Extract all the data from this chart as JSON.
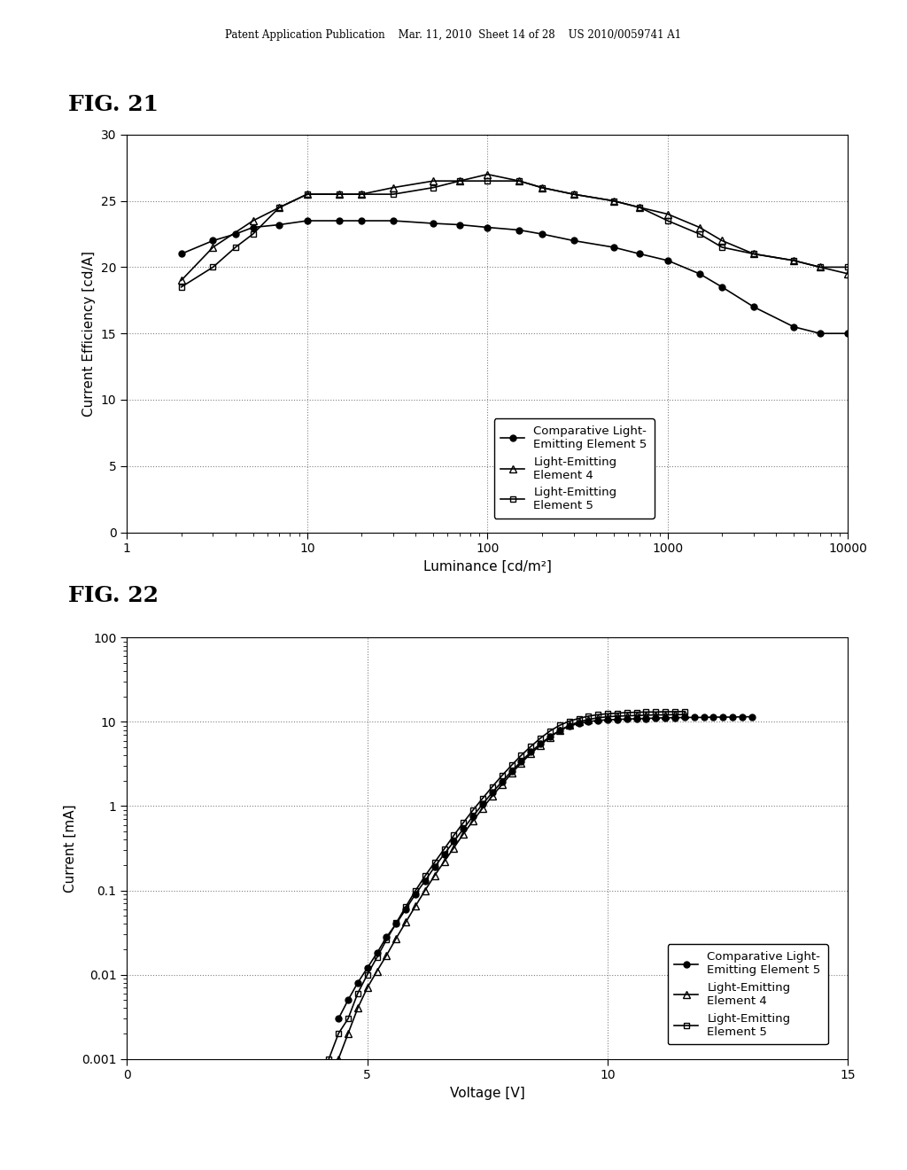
{
  "header_text": "Patent Application Publication    Mar. 11, 2010  Sheet 14 of 28    US 2010/0059741 A1",
  "fig1_label": "FIG. 21",
  "fig2_label": "FIG. 22",
  "fig1_xlabel": "Luminance [cd/m²]",
  "fig1_ylabel": "Current Efficiency [cd/A]",
  "fig2_xlabel": "Voltage [V]",
  "fig2_ylabel": "Current [mA]",
  "fig1_ylim": [
    0,
    30
  ],
  "fig1_yticks": [
    0,
    5,
    10,
    15,
    20,
    25,
    30
  ],
  "fig2_xlim": [
    0,
    15
  ],
  "fig2_xticks": [
    0,
    5,
    10,
    15
  ],
  "legend_labels": [
    "Comparative Light-\nEmitting Element 5",
    "Light-Emitting\nElement 4",
    "Light-Emitting\nElement 5"
  ],
  "fig1_comp5_x": [
    2,
    3,
    4,
    5,
    7,
    10,
    15,
    20,
    30,
    50,
    70,
    100,
    150,
    200,
    300,
    500,
    700,
    1000,
    1500,
    2000,
    3000,
    5000,
    7000,
    10000
  ],
  "fig1_comp5_y": [
    21.0,
    22.0,
    22.5,
    23.0,
    23.2,
    23.5,
    23.5,
    23.5,
    23.5,
    23.3,
    23.2,
    23.0,
    22.8,
    22.5,
    22.0,
    21.5,
    21.0,
    20.5,
    19.5,
    18.5,
    17.0,
    15.5,
    15.0,
    15.0
  ],
  "fig1_elem4_x": [
    2,
    3,
    5,
    7,
    10,
    15,
    20,
    30,
    50,
    70,
    100,
    150,
    200,
    300,
    500,
    700,
    1000,
    1500,
    2000,
    3000,
    5000,
    7000,
    10000
  ],
  "fig1_elem4_y": [
    19.0,
    21.5,
    23.5,
    24.5,
    25.5,
    25.5,
    25.5,
    26.0,
    26.5,
    26.5,
    27.0,
    26.5,
    26.0,
    25.5,
    25.0,
    24.5,
    24.0,
    23.0,
    22.0,
    21.0,
    20.5,
    20.0,
    19.5
  ],
  "fig1_elem5_x": [
    2,
    3,
    4,
    5,
    7,
    10,
    15,
    20,
    30,
    50,
    70,
    100,
    150,
    200,
    300,
    500,
    700,
    1000,
    1500,
    2000,
    3000,
    5000,
    7000,
    10000
  ],
  "fig1_elem5_y": [
    18.5,
    20.0,
    21.5,
    22.5,
    24.5,
    25.5,
    25.5,
    25.5,
    25.5,
    26.0,
    26.5,
    26.5,
    26.5,
    26.0,
    25.5,
    25.0,
    24.5,
    23.5,
    22.5,
    21.5,
    21.0,
    20.5,
    20.0,
    20.0
  ],
  "fig2_comp5_x": [
    4.4,
    4.6,
    4.8,
    5.0,
    5.2,
    5.4,
    5.6,
    5.8,
    6.0,
    6.2,
    6.4,
    6.6,
    6.8,
    7.0,
    7.2,
    7.4,
    7.6,
    7.8,
    8.0,
    8.2,
    8.4,
    8.6,
    8.8,
    9.0,
    9.2,
    9.4,
    9.6,
    9.8,
    10.0,
    10.2,
    10.4,
    10.6,
    10.8,
    11.0,
    11.2,
    11.4,
    11.6,
    11.8,
    12.0,
    12.2,
    12.4,
    12.6,
    12.8,
    13.0
  ],
  "fig2_comp5_y": [
    0.003,
    0.005,
    0.008,
    0.012,
    0.018,
    0.028,
    0.04,
    0.06,
    0.09,
    0.13,
    0.19,
    0.27,
    0.38,
    0.54,
    0.76,
    1.06,
    1.45,
    1.95,
    2.6,
    3.4,
    4.4,
    5.5,
    6.7,
    7.9,
    8.9,
    9.6,
    10.1,
    10.4,
    10.6,
    10.7,
    10.8,
    10.9,
    11.0,
    11.1,
    11.2,
    11.2,
    11.3,
    11.3,
    11.3,
    11.4,
    11.4,
    11.4,
    11.5,
    11.5
  ],
  "fig2_elem4_x": [
    4.4,
    4.6,
    4.8,
    5.0,
    5.2,
    5.4,
    5.6,
    5.8,
    6.0,
    6.2,
    6.4,
    6.6,
    6.8,
    7.0,
    7.2,
    7.4,
    7.6,
    7.8,
    8.0,
    8.2,
    8.4,
    8.6,
    8.8,
    9.0,
    9.2,
    9.4,
    9.6,
    9.8,
    10.0,
    10.2,
    10.4,
    10.6,
    10.8,
    11.0,
    11.2,
    11.4,
    11.6
  ],
  "fig2_elem4_y": [
    0.001,
    0.002,
    0.004,
    0.007,
    0.011,
    0.017,
    0.027,
    0.042,
    0.065,
    0.1,
    0.15,
    0.22,
    0.32,
    0.47,
    0.67,
    0.95,
    1.32,
    1.8,
    2.45,
    3.25,
    4.2,
    5.3,
    6.6,
    7.9,
    9.1,
    10.0,
    10.7,
    11.2,
    11.5,
    11.7,
    11.8,
    11.9,
    12.0,
    12.1,
    12.1,
    12.2,
    12.2
  ],
  "fig2_elem5_x": [
    4.2,
    4.4,
    4.6,
    4.8,
    5.0,
    5.2,
    5.4,
    5.6,
    5.8,
    6.0,
    6.2,
    6.4,
    6.6,
    6.8,
    7.0,
    7.2,
    7.4,
    7.6,
    7.8,
    8.0,
    8.2,
    8.4,
    8.6,
    8.8,
    9.0,
    9.2,
    9.4,
    9.6,
    9.8,
    10.0,
    10.2,
    10.4,
    10.6,
    10.8,
    11.0,
    11.2,
    11.4,
    11.6
  ],
  "fig2_elem5_y": [
    0.001,
    0.002,
    0.003,
    0.006,
    0.01,
    0.016,
    0.026,
    0.041,
    0.064,
    0.099,
    0.148,
    0.215,
    0.31,
    0.45,
    0.64,
    0.9,
    1.24,
    1.7,
    2.3,
    3.05,
    4.0,
    5.1,
    6.4,
    7.8,
    9.1,
    10.2,
    11.0,
    11.7,
    12.2,
    12.5,
    12.7,
    12.9,
    13.0,
    13.1,
    13.1,
    13.2,
    13.2,
    13.3
  ]
}
